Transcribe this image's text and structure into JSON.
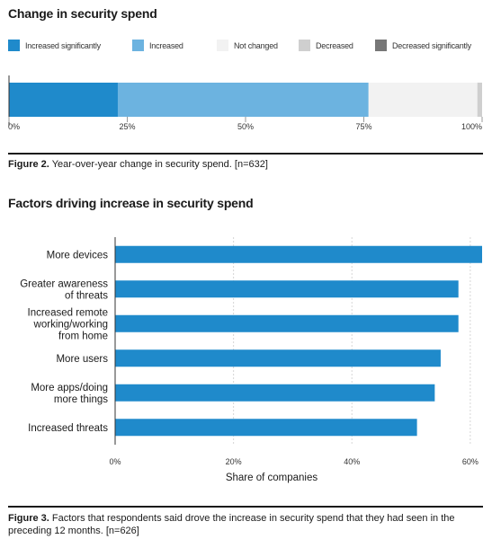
{
  "figures": [
    {
      "title": "Change in security spend",
      "caption_label": "Figure 2.",
      "caption_text": "Year-over-year change in security spend. [n=632]"
    },
    {
      "title": "Factors driving increase in security spend",
      "caption_label": "Figure 3.",
      "caption_text": "Factors that respondents said drove the increase in security spend that they had seen in the preceding 12 months. [n=626]"
    }
  ],
  "chart_data": [
    {
      "type": "bar",
      "orientation": "horizontal-stacked",
      "title": "Change in security spend",
      "categories": [
        ""
      ],
      "series": [
        {
          "name": "Increased significantly",
          "values": [
            23
          ],
          "color": "#1f8acb"
        },
        {
          "name": "Increased",
          "values": [
            53
          ],
          "color": "#6cb3e0"
        },
        {
          "name": "Not changed",
          "values": [
            23
          ],
          "color": "#f2f2f2"
        },
        {
          "name": "Decreased",
          "values": [
            1
          ],
          "color": "#cfcfcf"
        },
        {
          "name": "Decreased significantly",
          "values": [
            0
          ],
          "color": "#777777"
        }
      ],
      "xlim": [
        0,
        100
      ],
      "x_ticks": [
        "0%",
        "25%",
        "50%",
        "75%",
        "100%"
      ],
      "x_tick_values": [
        0,
        25,
        50,
        75,
        100
      ],
      "legend": "top",
      "grid": false
    },
    {
      "type": "bar",
      "orientation": "horizontal",
      "title": "Factors driving increase in security spend",
      "categories": [
        "More devices",
        "Greater awareness\nof threats",
        "Increased remote\nworking/working\nfrom home",
        "More users",
        "More apps/doing\nmore things",
        "Increased threats"
      ],
      "values": [
        62,
        58,
        58,
        55,
        54,
        51
      ],
      "color": "#1f8acb",
      "xlabel": "Share of companies",
      "xlim": [
        0,
        62
      ],
      "x_ticks": [
        "0%",
        "20%",
        "40%",
        "60%"
      ],
      "x_tick_values": [
        0,
        20,
        40,
        60
      ],
      "grid": true
    }
  ]
}
